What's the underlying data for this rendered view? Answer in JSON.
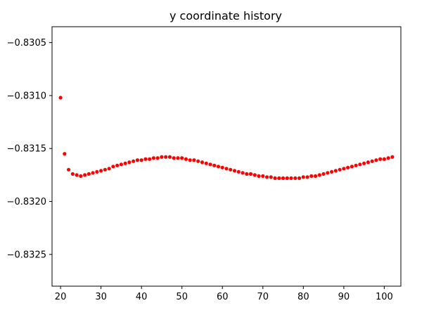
{
  "chart_data": {
    "type": "scatter",
    "title": "y coordinate history",
    "xlabel": "",
    "ylabel": "",
    "xlim": [
      17.9,
      104.1
    ],
    "ylim": [
      -0.8328,
      -0.83035
    ],
    "xticks": [
      20,
      30,
      40,
      50,
      60,
      70,
      80,
      90,
      100
    ],
    "yticks": [
      -0.8325,
      -0.832,
      -0.8315,
      -0.831,
      -0.8305
    ],
    "ytick_labels": [
      "−0.8325",
      "−0.8320",
      "−0.8315",
      "−0.8310",
      "−0.8305"
    ],
    "grid": false,
    "legend": "none",
    "marker_color": "#ff0000",
    "series": [
      {
        "x": [
          20,
          21,
          22,
          23,
          24,
          25,
          26,
          27,
          28,
          29,
          30,
          31,
          32,
          33,
          34,
          35,
          36,
          37,
          38,
          39,
          40,
          41,
          42,
          43,
          44,
          45,
          46,
          47,
          48,
          49,
          50,
          51,
          52,
          53,
          54,
          55,
          56,
          57,
          58,
          59,
          60,
          61,
          62,
          63,
          64,
          65,
          66,
          67,
          68,
          69,
          70,
          71,
          72,
          73,
          74,
          75,
          76,
          77,
          78,
          79,
          80,
          81,
          82,
          83,
          84,
          85,
          86,
          87,
          88,
          89,
          90,
          91,
          92,
          93,
          94,
          95,
          96,
          97,
          98,
          99,
          100,
          101,
          102
        ],
        "y": [
          -0.83102,
          -0.83155,
          -0.8317,
          -0.83174,
          -0.83175,
          -0.83176,
          -0.83175,
          -0.83174,
          -0.83173,
          -0.83172,
          -0.83171,
          -0.8317,
          -0.83169,
          -0.83167,
          -0.83166,
          -0.83165,
          -0.83164,
          -0.83163,
          -0.83162,
          -0.83161,
          -0.83161,
          -0.8316,
          -0.8316,
          -0.83159,
          -0.83159,
          -0.83158,
          -0.83158,
          -0.83158,
          -0.83159,
          -0.83159,
          -0.83159,
          -0.8316,
          -0.83161,
          -0.83161,
          -0.83162,
          -0.83163,
          -0.83164,
          -0.83165,
          -0.83166,
          -0.83167,
          -0.83168,
          -0.83169,
          -0.8317,
          -0.83171,
          -0.83172,
          -0.83173,
          -0.83174,
          -0.83174,
          -0.83175,
          -0.83176,
          -0.83176,
          -0.83177,
          -0.83177,
          -0.83178,
          -0.83178,
          -0.83178,
          -0.83178,
          -0.83178,
          -0.83178,
          -0.83178,
          -0.83177,
          -0.83177,
          -0.83176,
          -0.83176,
          -0.83175,
          -0.83174,
          -0.83173,
          -0.83172,
          -0.83171,
          -0.8317,
          -0.83169,
          -0.83168,
          -0.83167,
          -0.83166,
          -0.83165,
          -0.83164,
          -0.83163,
          -0.83162,
          -0.83161,
          -0.8316,
          -0.8316,
          -0.83159,
          -0.83158
        ]
      }
    ]
  }
}
